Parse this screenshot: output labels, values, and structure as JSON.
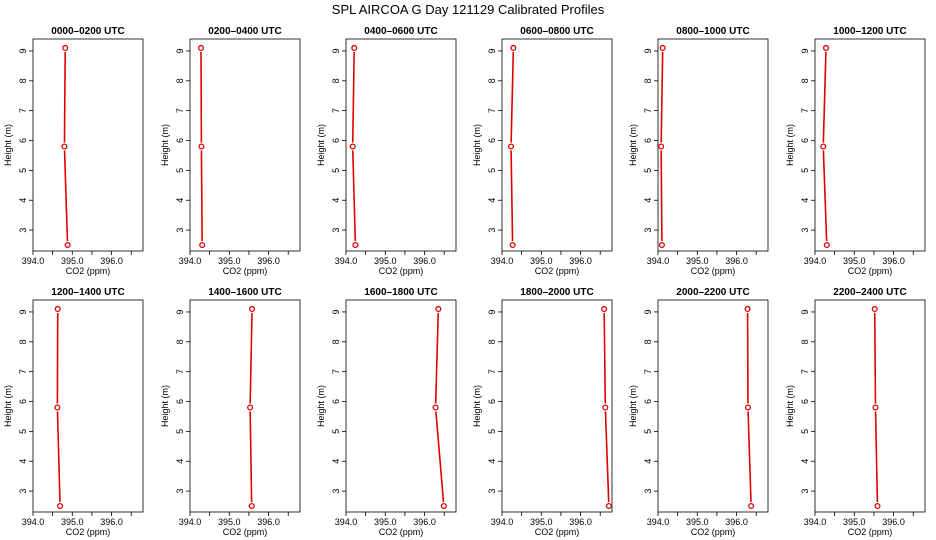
{
  "title": "SPL AIRCOA G  Day 121129  Calibrated Profiles",
  "series_color": "#dd0000",
  "chart_data": {
    "type": "line",
    "xlabel": "CO2 (ppm)",
    "ylabel": "Height (m)",
    "xlim": [
      394.0,
      396.8
    ],
    "ylim": [
      2.3,
      9.4
    ],
    "xticks": [
      394.0,
      394.5,
      395.0,
      395.5,
      396.0,
      396.5
    ],
    "xtick_labels": [
      "394.0",
      "",
      "395.0",
      "",
      "396.0",
      ""
    ],
    "yticks": [
      3,
      4,
      5,
      6,
      7,
      8,
      9
    ],
    "heights": [
      9.1,
      5.8,
      2.5
    ],
    "panels": [
      {
        "title": "0000–0200 UTC",
        "co2": [
          394.82,
          394.8,
          394.88
        ]
      },
      {
        "title": "0200–0400 UTC",
        "co2": [
          394.28,
          394.29,
          394.31
        ]
      },
      {
        "title": "0400–0600 UTC",
        "co2": [
          394.21,
          394.17,
          394.24
        ]
      },
      {
        "title": "0600–0800 UTC",
        "co2": [
          394.29,
          394.23,
          394.27
        ]
      },
      {
        "title": "0800–1000 UTC",
        "co2": [
          394.12,
          394.08,
          394.1
        ]
      },
      {
        "title": "1000–1200 UTC",
        "co2": [
          394.28,
          394.21,
          394.3
        ]
      },
      {
        "title": "1200–1400 UTC",
        "co2": [
          394.63,
          394.62,
          394.69
        ]
      },
      {
        "title": "1400–1600 UTC",
        "co2": [
          395.58,
          395.53,
          395.57
        ]
      },
      {
        "title": "1600–1800 UTC",
        "co2": [
          396.35,
          396.28,
          396.49
        ]
      },
      {
        "title": "1800–2000 UTC",
        "co2": [
          396.6,
          396.63,
          396.72
        ]
      },
      {
        "title": "2000–2200 UTC",
        "co2": [
          396.28,
          396.29,
          396.37
        ]
      },
      {
        "title": "2200–2400 UTC",
        "co2": [
          395.52,
          395.54,
          395.59
        ]
      }
    ]
  }
}
